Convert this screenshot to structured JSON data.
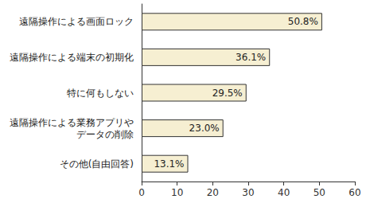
{
  "chart_data": {
    "type": "bar",
    "orientation": "horizontal",
    "categories": [
      "遠隔操作による画面ロック",
      "遠隔操作による端末の初期化",
      "特に何もしない",
      "遠隔操作による業務アプリやデータの削除",
      "その他(自由回答)"
    ],
    "values": [
      50.8,
      36.1,
      29.5,
      23.0,
      13.1
    ],
    "value_labels": [
      "50.8%",
      "36.1%",
      "29.5%",
      "23.0%",
      "13.1%"
    ],
    "color": "#f6efd2",
    "xlim": [
      0,
      60
    ],
    "xticks": [
      0,
      10,
      20,
      30,
      40,
      50,
      60
    ],
    "grid": false,
    "data_labels": true
  }
}
